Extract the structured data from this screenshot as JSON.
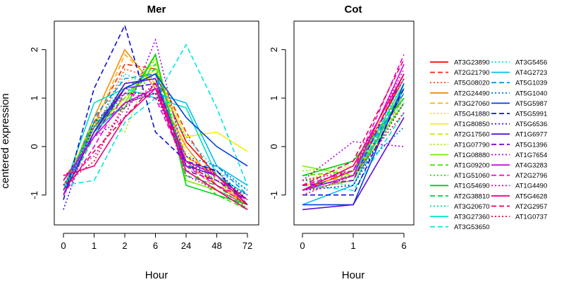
{
  "y_axis_label": "centered expression",
  "chart_data": [
    {
      "type": "line",
      "title": "Mer",
      "xlabel": "Hour",
      "ylabel": "centered expression",
      "categories": [
        "0",
        "1",
        "2",
        "6",
        "24",
        "48",
        "72"
      ],
      "ylim": [
        -1.5,
        2.5
      ],
      "yticks": [
        -1,
        0,
        1,
        2
      ],
      "series": [
        {
          "name": "AT3G23890",
          "values": [
            -0.9,
            0.4,
            1.2,
            1.5,
            0.1,
            -0.6,
            -1.1
          ]
        },
        {
          "name": "AT2G21790",
          "values": [
            -1.0,
            0.5,
            1.7,
            1.6,
            0.3,
            -0.7,
            -1.2
          ]
        },
        {
          "name": "AT5G08020",
          "values": [
            -0.8,
            0.3,
            1.6,
            1.4,
            -0.2,
            -0.6,
            -1.3
          ]
        },
        {
          "name": "AT2G24490",
          "values": [
            -0.9,
            0.6,
            2.0,
            1.2,
            0.0,
            -0.8,
            -1.2
          ]
        },
        {
          "name": "AT3G27060",
          "values": [
            -0.7,
            0.4,
            1.9,
            1.3,
            -0.3,
            -0.9,
            -1.3
          ]
        },
        {
          "name": "AT5G41880",
          "values": [
            -0.8,
            0.2,
            1.3,
            1.7,
            -0.1,
            -0.7,
            -1.2
          ]
        },
        {
          "name": "AT1G80850",
          "values": [
            -1.0,
            0.3,
            1.0,
            1.6,
            0.2,
            0.3,
            -0.1
          ]
        },
        {
          "name": "AT2G17560",
          "values": [
            -0.8,
            0.5,
            0.9,
            1.8,
            -0.2,
            -0.8,
            -1.1
          ]
        },
        {
          "name": "AT1G07790",
          "values": [
            -0.9,
            0.6,
            0.3,
            1.9,
            -0.5,
            -0.9,
            -1.2
          ]
        },
        {
          "name": "AT1G08880",
          "values": [
            -0.8,
            0.2,
            0.9,
            1.9,
            -0.7,
            -0.9,
            -1.3
          ]
        },
        {
          "name": "AT1G09200",
          "values": [
            -0.9,
            0.4,
            1.0,
            1.7,
            -0.4,
            -1.0,
            -1.3
          ]
        },
        {
          "name": "AT1G51060",
          "values": [
            -1.0,
            0.3,
            1.1,
            1.5,
            -0.5,
            -0.9,
            -1.2
          ]
        },
        {
          "name": "AT1G54690",
          "values": [
            -0.9,
            0.5,
            0.8,
            1.9,
            -0.8,
            -1.0,
            -1.2
          ]
        },
        {
          "name": "AT2G38810",
          "values": [
            -1.0,
            0.2,
            1.2,
            1.6,
            -0.6,
            -0.8,
            -1.3
          ]
        },
        {
          "name": "AT3G20670",
          "values": [
            -0.9,
            0.4,
            1.3,
            1.4,
            -0.3,
            -0.7,
            -1.1
          ]
        },
        {
          "name": "AT3G27360",
          "values": [
            -0.9,
            0.9,
            1.2,
            1.0,
            0.8,
            -0.6,
            -1.0
          ]
        },
        {
          "name": "AT3G53650",
          "values": [
            -0.8,
            -0.7,
            0.5,
            1.0,
            2.1,
            0.8,
            -0.8
          ]
        },
        {
          "name": "AT3G5456",
          "values": [
            -0.7,
            0.3,
            1.5,
            1.2,
            0.2,
            -0.5,
            -0.9
          ]
        },
        {
          "name": "AT4G2723",
          "values": [
            -0.9,
            0.3,
            0.9,
            1.1,
            0.9,
            -0.4,
            -0.8
          ]
        },
        {
          "name": "AT5G1039",
          "values": [
            -1.0,
            0.6,
            1.4,
            1.5,
            -0.4,
            -0.4,
            -1.0
          ]
        },
        {
          "name": "AT5G1040",
          "values": [
            -0.9,
            0.4,
            1.2,
            1.3,
            -0.2,
            -0.4,
            -0.9
          ]
        },
        {
          "name": "AT5G5987",
          "values": [
            -1.0,
            0.3,
            1.2,
            1.5,
            0.6,
            0.0,
            -0.4
          ]
        },
        {
          "name": "AT5G5991",
          "values": [
            -1.1,
            1.2,
            2.5,
            0.3,
            -0.3,
            -0.5,
            -1.2
          ]
        },
        {
          "name": "AT5G6536",
          "values": [
            -1.3,
            0.5,
            1.1,
            1.1,
            -0.4,
            -0.5,
            -1.1
          ]
        },
        {
          "name": "AT1G6977",
          "values": [
            -1.0,
            0.3,
            1.3,
            1.4,
            -0.4,
            -0.6,
            -1.2
          ]
        },
        {
          "name": "AT5G1396",
          "values": [
            -0.7,
            0.2,
            1.2,
            1.3,
            -0.5,
            -0.7,
            -1.1
          ]
        },
        {
          "name": "AT1G7654",
          "values": [
            -0.8,
            0.2,
            0.6,
            2.2,
            -0.4,
            -0.7,
            -1.0
          ]
        },
        {
          "name": "AT4G3283",
          "values": [
            -0.7,
            0.2,
            0.9,
            1.2,
            -0.3,
            -0.6,
            -1.2
          ]
        },
        {
          "name": "AT2G2796",
          "values": [
            -1.0,
            0.0,
            1.1,
            1.0,
            -0.4,
            -0.8,
            -1.1
          ]
        },
        {
          "name": "AT1G4490",
          "values": [
            -0.6,
            -0.2,
            0.8,
            1.3,
            -0.6,
            -0.9,
            -1.2
          ]
        },
        {
          "name": "AT5G4628",
          "values": [
            -0.6,
            -0.4,
            0.6,
            1.2,
            -0.5,
            -0.9,
            -1.3
          ]
        },
        {
          "name": "AT2G2957",
          "values": [
            -0.9,
            -0.1,
            0.6,
            1.3,
            -0.3,
            -0.8,
            -1.2
          ]
        },
        {
          "name": "AT1G0737",
          "values": [
            -0.8,
            -0.3,
            0.9,
            1.1,
            -0.2,
            -0.6,
            -1.2
          ]
        }
      ]
    },
    {
      "type": "line",
      "title": "Cot",
      "xlabel": "Hour",
      "categories": [
        "0",
        "1",
        "6"
      ],
      "ylim": [
        -1.5,
        2.5
      ],
      "yticks": [
        -1,
        0,
        1,
        2
      ],
      "series": [
        {
          "name": "AT3G23890",
          "values": [
            -0.9,
            -0.5,
            1.4
          ]
        },
        {
          "name": "AT2G21790",
          "values": [
            -0.8,
            -0.6,
            1.5
          ]
        },
        {
          "name": "AT5G08020",
          "values": [
            -0.7,
            -0.5,
            1.2
          ]
        },
        {
          "name": "AT2G24490",
          "values": [
            -0.9,
            -0.7,
            1.1
          ]
        },
        {
          "name": "AT3G27060",
          "values": [
            -0.8,
            -0.6,
            1.0
          ]
        },
        {
          "name": "AT5G41880",
          "values": [
            -0.7,
            -0.4,
            1.3
          ]
        },
        {
          "name": "AT1G80850",
          "values": [
            -0.8,
            -0.7,
            0.9
          ]
        },
        {
          "name": "AT2G17560",
          "values": [
            -0.6,
            -0.5,
            1.1
          ]
        },
        {
          "name": "AT1G07790",
          "values": [
            -0.5,
            -0.4,
            1.0
          ]
        },
        {
          "name": "AT1G08880",
          "values": [
            -0.4,
            -0.6,
            0.9
          ]
        },
        {
          "name": "AT1G09200",
          "values": [
            -0.6,
            -0.5,
            1.2
          ]
        },
        {
          "name": "AT1G51060",
          "values": [
            -0.7,
            -0.6,
            1.1
          ]
        },
        {
          "name": "AT1G54690",
          "values": [
            -0.6,
            -0.3,
            1.0
          ]
        },
        {
          "name": "AT2G38810",
          "values": [
            -0.8,
            -0.7,
            1.2
          ]
        },
        {
          "name": "AT3G20670",
          "values": [
            -0.7,
            -0.8,
            1.0
          ]
        },
        {
          "name": "AT3G27360",
          "values": [
            -0.9,
            -0.6,
            1.3
          ]
        },
        {
          "name": "AT3G53650",
          "values": [
            -0.8,
            -0.9,
            0.7
          ]
        },
        {
          "name": "AT3G5456",
          "values": [
            -0.9,
            -0.7,
            1.4
          ]
        },
        {
          "name": "AT4G2723",
          "values": [
            -1.2,
            -0.8,
            1.2
          ]
        },
        {
          "name": "AT5G1039",
          "values": [
            -0.8,
            -0.5,
            1.1
          ]
        },
        {
          "name": "AT5G1040",
          "values": [
            -0.9,
            -0.6,
            0.4
          ]
        },
        {
          "name": "AT5G5987",
          "values": [
            -1.2,
            -1.2,
            1.3
          ]
        },
        {
          "name": "AT5G5991",
          "values": [
            -1.0,
            -1.0,
            1.2
          ]
        },
        {
          "name": "AT5G6536",
          "values": [
            -0.9,
            -0.8,
            0.9
          ]
        },
        {
          "name": "AT1G6977",
          "values": [
            -1.3,
            -1.2,
            0.6
          ]
        },
        {
          "name": "AT5G1396",
          "values": [
            -0.8,
            -0.7,
            1.5
          ]
        },
        {
          "name": "AT1G7654",
          "values": [
            -0.7,
            0.1,
            0.0
          ]
        },
        {
          "name": "AT4G3283",
          "values": [
            -0.9,
            -0.6,
            1.7
          ]
        },
        {
          "name": "AT2G2796",
          "values": [
            -0.8,
            -0.5,
            1.9
          ]
        },
        {
          "name": "AT1G4490",
          "values": [
            -0.7,
            -0.5,
            1.6
          ]
        },
        {
          "name": "AT5G4628",
          "values": [
            -0.9,
            -0.4,
            1.5
          ]
        },
        {
          "name": "AT2G2957",
          "values": [
            -0.8,
            -0.3,
            1.8
          ]
        },
        {
          "name": "AT1G0737",
          "values": [
            -1.0,
            -0.6,
            0.7
          ]
        }
      ]
    }
  ],
  "legend": {
    "placement": "right",
    "entries": [
      {
        "name": "AT3G23890",
        "color": "#FF0000",
        "dash": "solid"
      },
      {
        "name": "AT2G21790",
        "color": "#FF2600",
        "dash": "dashed"
      },
      {
        "name": "AT5G08020",
        "color": "#FF5000",
        "dash": "dotted"
      },
      {
        "name": "AT2G24490",
        "color": "#FF8C00",
        "dash": "solid"
      },
      {
        "name": "AT3G27060",
        "color": "#FFB000",
        "dash": "dashed"
      },
      {
        "name": "AT5G41880",
        "color": "#FFD800",
        "dash": "dotted"
      },
      {
        "name": "AT1G80850",
        "color": "#F2F200",
        "dash": "solid"
      },
      {
        "name": "AT2G17560",
        "color": "#C8F000",
        "dash": "dashed"
      },
      {
        "name": "AT1G07790",
        "color": "#A0F000",
        "dash": "dotted"
      },
      {
        "name": "AT1G08880",
        "color": "#74F000",
        "dash": "solid"
      },
      {
        "name": "AT1G09200",
        "color": "#40E000",
        "dash": "dashed"
      },
      {
        "name": "AT1G51060",
        "color": "#20D800",
        "dash": "dotted"
      },
      {
        "name": "AT1G54690",
        "color": "#00D020",
        "dash": "solid"
      },
      {
        "name": "AT2G38810",
        "color": "#00D050",
        "dash": "dashed"
      },
      {
        "name": "AT3G20670",
        "color": "#00D8A0",
        "dash": "dotted"
      },
      {
        "name": "AT3G27360",
        "color": "#00E0C0",
        "dash": "solid"
      },
      {
        "name": "AT3G53650",
        "color": "#00E8E0",
        "dash": "dashed"
      },
      {
        "name": "AT3G5456",
        "color": "#00E0F0",
        "dash": "dotted"
      },
      {
        "name": "AT4G2723",
        "color": "#00C0F0",
        "dash": "solid"
      },
      {
        "name": "AT5G1039",
        "color": "#0098E8",
        "dash": "dashed"
      },
      {
        "name": "AT5G1040",
        "color": "#0070E0",
        "dash": "dotted"
      },
      {
        "name": "AT5G5987",
        "color": "#0040E0",
        "dash": "solid"
      },
      {
        "name": "AT5G5991",
        "color": "#1010D0",
        "dash": "dashed"
      },
      {
        "name": "AT5G6536",
        "color": "#3010E0",
        "dash": "dotted"
      },
      {
        "name": "AT1G6977",
        "color": "#5810E0",
        "dash": "solid"
      },
      {
        "name": "AT5G1396",
        "color": "#8000E0",
        "dash": "dashed"
      },
      {
        "name": "AT1G7654",
        "color": "#A800E8",
        "dash": "dotted"
      },
      {
        "name": "AT4G3283",
        "color": "#D000E8",
        "dash": "solid"
      },
      {
        "name": "AT2G2796",
        "color": "#F000D8",
        "dash": "dashed"
      },
      {
        "name": "AT1G4490",
        "color": "#F000B0",
        "dash": "dotted"
      },
      {
        "name": "AT5G4628",
        "color": "#F00080",
        "dash": "solid"
      },
      {
        "name": "AT2G2957",
        "color": "#F00050",
        "dash": "dashed"
      },
      {
        "name": "AT1G0737",
        "color": "#F00028",
        "dash": "dotted"
      }
    ]
  }
}
